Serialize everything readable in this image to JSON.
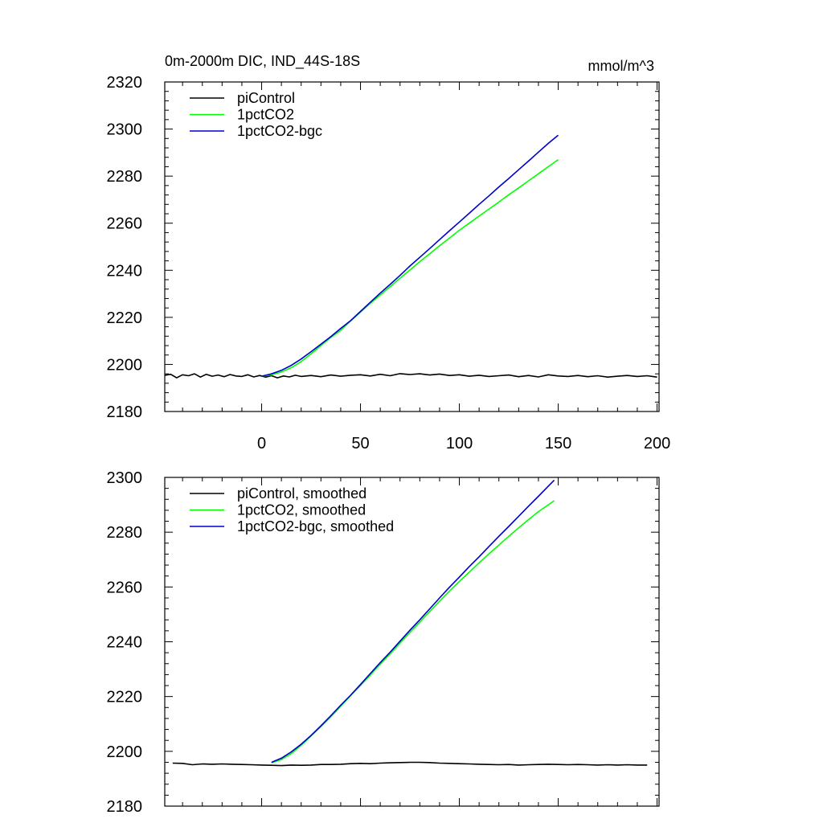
{
  "chart_data": [
    {
      "type": "line",
      "title": "0m-2000m DIC, IND_44S-18S",
      "units": "mmol/m^3",
      "xlim": [
        -49,
        201
      ],
      "ylim": [
        2180,
        2320
      ],
      "xticks": [
        0,
        50,
        100,
        150,
        200
      ],
      "yticks": [
        2180,
        2200,
        2220,
        2240,
        2260,
        2280,
        2300,
        2320
      ],
      "show_xtick_labels": true,
      "legend_position": "top-left",
      "series": [
        {
          "name": "piControl",
          "color": "#000000",
          "x": [
            -49,
            -46,
            -43,
            -40,
            -37,
            -34,
            -31,
            -28,
            -25,
            -22,
            -19,
            -16,
            -13,
            -10,
            -7,
            -4,
            -1,
            2,
            5,
            8,
            11,
            14,
            17,
            20,
            25,
            30,
            35,
            40,
            45,
            50,
            55,
            60,
            65,
            70,
            75,
            80,
            85,
            90,
            95,
            100,
            105,
            110,
            115,
            120,
            125,
            130,
            135,
            140,
            145,
            150,
            155,
            160,
            165,
            170,
            175,
            180,
            185,
            190,
            195,
            200
          ],
          "y": [
            2195.4,
            2195.8,
            2194.3,
            2195.6,
            2195.2,
            2196.0,
            2194.6,
            2195.8,
            2195.0,
            2195.5,
            2194.8,
            2195.7,
            2195.1,
            2194.9,
            2195.6,
            2194.7,
            2195.3,
            2194.6,
            2195.2,
            2194.3,
            2195.1,
            2194.7,
            2195.4,
            2194.9,
            2195.3,
            2194.8,
            2195.5,
            2195.0,
            2195.4,
            2195.6,
            2195.1,
            2195.8,
            2195.2,
            2196.1,
            2195.7,
            2196.0,
            2195.5,
            2195.9,
            2195.3,
            2195.6,
            2195.0,
            2195.4,
            2194.9,
            2195.2,
            2195.5,
            2194.8,
            2195.3,
            2194.7,
            2195.6,
            2195.1,
            2194.9,
            2195.3,
            2194.8,
            2195.2,
            2194.6,
            2195.0,
            2195.3,
            2194.9,
            2195.2,
            2194.6
          ]
        },
        {
          "name": "1pctCO2",
          "color": "#00ff00",
          "x": [
            0,
            5,
            10,
            15,
            20,
            25,
            30,
            35,
            40,
            45,
            50,
            55,
            60,
            65,
            70,
            75,
            80,
            85,
            90,
            95,
            100,
            105,
            110,
            115,
            120,
            125,
            130,
            135,
            140,
            145,
            150
          ],
          "y": [
            2195.0,
            2195.6,
            2196.8,
            2198.6,
            2201.2,
            2204.5,
            2208.0,
            2211.5,
            2214.5,
            2218.5,
            2222.2,
            2226.0,
            2229.5,
            2233.0,
            2236.6,
            2240.1,
            2243.7,
            2247.0,
            2250.4,
            2253.7,
            2257.0,
            2260.0,
            2263.0,
            2266.0,
            2269.0,
            2272.1,
            2275.0,
            2278.0,
            2281.0,
            2284.0,
            2287.0
          ]
        },
        {
          "name": "1pctCO2-bgc",
          "color": "#0000cc",
          "x": [
            0,
            5,
            10,
            15,
            20,
            25,
            30,
            35,
            40,
            45,
            50,
            55,
            60,
            65,
            70,
            75,
            80,
            85,
            90,
            95,
            100,
            105,
            110,
            115,
            120,
            125,
            130,
            135,
            140,
            145,
            150
          ],
          "y": [
            2195.0,
            2196.0,
            2197.5,
            2199.6,
            2202.3,
            2205.4,
            2208.6,
            2211.8,
            2215.3,
            2218.6,
            2222.5,
            2226.4,
            2230.3,
            2234.0,
            2237.8,
            2241.8,
            2245.5,
            2249.2,
            2253.0,
            2256.8,
            2260.5,
            2264.2,
            2268.0,
            2271.6,
            2275.4,
            2279.0,
            2282.7,
            2286.4,
            2290.2,
            2293.9,
            2297.4
          ]
        }
      ]
    },
    {
      "type": "line",
      "xlim": [
        -49,
        201
      ],
      "ylim": [
        2180,
        2300
      ],
      "xticks": [
        0,
        50,
        100,
        150,
        200
      ],
      "yticks": [
        2180,
        2200,
        2220,
        2240,
        2260,
        2280,
        2300
      ],
      "show_xtick_labels": false,
      "legend_position": "top-left",
      "series": [
        {
          "name": "piControl, smoothed",
          "color": "#000000",
          "x": [
            -45,
            -40,
            -35,
            -30,
            -25,
            -20,
            -15,
            -10,
            -5,
            0,
            5,
            10,
            15,
            20,
            25,
            30,
            35,
            40,
            45,
            50,
            55,
            60,
            65,
            70,
            75,
            80,
            85,
            90,
            95,
            100,
            105,
            110,
            115,
            120,
            125,
            130,
            135,
            140,
            145,
            150,
            155,
            160,
            165,
            170,
            175,
            180,
            185,
            190,
            195
          ],
          "y": [
            2195.7,
            2195.6,
            2195.1,
            2195.4,
            2195.3,
            2195.4,
            2195.3,
            2195.2,
            2195.1,
            2195.0,
            2194.9,
            2194.8,
            2195.0,
            2194.9,
            2195.0,
            2195.2,
            2195.2,
            2195.3,
            2195.5,
            2195.6,
            2195.5,
            2195.7,
            2195.8,
            2195.9,
            2196.0,
            2196.0,
            2195.9,
            2195.7,
            2195.6,
            2195.5,
            2195.4,
            2195.3,
            2195.2,
            2195.1,
            2195.2,
            2195.0,
            2195.1,
            2195.2,
            2195.3,
            2195.2,
            2195.1,
            2195.2,
            2195.1,
            2195.0,
            2195.1,
            2195.0,
            2195.1,
            2195.0,
            2195.0
          ]
        },
        {
          "name": "1pctCO2, smoothed",
          "color": "#00ff00",
          "x": [
            5,
            10,
            15,
            20,
            25,
            30,
            35,
            40,
            45,
            50,
            55,
            60,
            65,
            70,
            75,
            80,
            85,
            90,
            95,
            100,
            105,
            110,
            115,
            120,
            125,
            130,
            135,
            140,
            145,
            148
          ],
          "y": [
            2195.8,
            2197.0,
            2199.2,
            2202.2,
            2205.6,
            2209.0,
            2212.6,
            2216.5,
            2220.3,
            2224.0,
            2227.9,
            2231.8,
            2235.6,
            2239.5,
            2243.4,
            2247.2,
            2251.0,
            2254.8,
            2258.5,
            2262.0,
            2265.4,
            2268.8,
            2272.1,
            2275.3,
            2278.5,
            2281.6,
            2284.6,
            2287.5,
            2290.0,
            2291.5
          ]
        },
        {
          "name": "1pctCO2-bgc, smoothed",
          "color": "#0000cc",
          "x": [
            5,
            10,
            15,
            20,
            25,
            30,
            35,
            40,
            45,
            50,
            55,
            60,
            65,
            70,
            75,
            80,
            85,
            90,
            95,
            100,
            105,
            110,
            115,
            120,
            125,
            130,
            135,
            140,
            145,
            148
          ],
          "y": [
            2196.0,
            2197.5,
            2199.8,
            2202.6,
            2205.8,
            2209.3,
            2213.0,
            2216.8,
            2220.5,
            2224.4,
            2228.4,
            2232.4,
            2236.2,
            2240.2,
            2244.2,
            2248.0,
            2252.0,
            2256.0,
            2259.9,
            2263.6,
            2267.4,
            2271.0,
            2274.8,
            2278.5,
            2282.1,
            2285.8,
            2289.5,
            2293.1,
            2296.8,
            2299.0
          ]
        }
      ]
    }
  ]
}
